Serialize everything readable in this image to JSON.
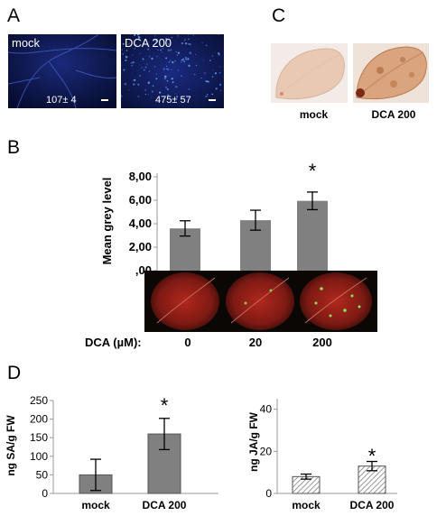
{
  "panel_a": {
    "letter": "A",
    "images": [
      {
        "label": "mock",
        "count": "107± 4"
      },
      {
        "label": "DCA 200",
        "count": "475± 57"
      }
    ]
  },
  "panel_b": {
    "letter": "B",
    "dca_label": "DCA (µM):",
    "asterisk": "*"
  },
  "panel_c": {
    "letter": "C",
    "labels": [
      "mock",
      "DCA 200"
    ]
  },
  "panel_d": {
    "letter": "D",
    "asterisk": "*"
  },
  "chart_data": [
    {
      "type": "bar",
      "categories": [
        "0",
        "20",
        "200"
      ],
      "values": [
        3.6,
        4.3,
        5.95
      ],
      "errors": [
        0.65,
        0.85,
        0.75
      ],
      "ylabel": "Mean grey level",
      "ylim": [
        0,
        8
      ],
      "yticks": [
        "8,00",
        "6,00",
        "4,00",
        "2,00",
        ",00"
      ],
      "yticks_values": [
        8,
        6,
        4,
        2,
        0
      ],
      "bar_color": "#808080",
      "significant": [
        false,
        false,
        true
      ]
    },
    {
      "type": "bar",
      "categories": [
        "mock",
        "DCA 200"
      ],
      "values": [
        50,
        160
      ],
      "errors": [
        42,
        42
      ],
      "ylabel": "ng SA/g FW",
      "ylim": [
        0,
        250
      ],
      "yticks": [
        0,
        50,
        100,
        150,
        200,
        250
      ],
      "bar_color": "#808080",
      "significant": [
        false,
        true
      ]
    },
    {
      "type": "bar",
      "categories": [
        "mock",
        "DCA 200"
      ],
      "values": [
        8,
        13
      ],
      "errors": [
        1.2,
        2.2
      ],
      "ylabel": "ng JA/g FW",
      "ylim": [
        0,
        45
      ],
      "yticks": [
        0,
        20,
        40
      ],
      "bar_color": "hatched",
      "significant": [
        false,
        true
      ]
    }
  ]
}
